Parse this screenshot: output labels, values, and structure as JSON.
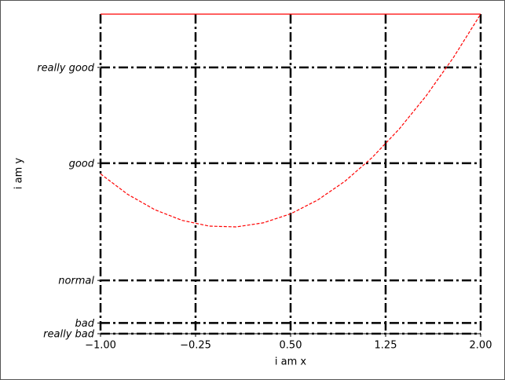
{
  "chart_data": {
    "type": "line",
    "x_label": "i am x",
    "y_label": "i am y",
    "x": [
      -1,
      -0.786,
      -0.571,
      -0.357,
      -0.143,
      0.071,
      0.286,
      0.5,
      0.714,
      0.929,
      1.143,
      1.357,
      1.571,
      1.786,
      2
    ],
    "series": [
      {
        "color": "#ff0000",
        "values": [
          1,
          0.617,
          0.327,
          0.128,
          0.02,
          0.005,
          0.082,
          0.25,
          0.51,
          0.862,
          1.306,
          1.842,
          2.469,
          3.189,
          4
        ]
      }
    ],
    "xlim": [
      -1,
      2
    ],
    "xticks": [
      {
        "value": -1,
        "label": "−1.00"
      },
      {
        "value": -0.25,
        "label": "−0.25"
      },
      {
        "value": 0.5,
        "label": "0.50"
      },
      {
        "value": 1.25,
        "label": "1.25"
      },
      {
        "value": 2,
        "label": "2.00"
      }
    ],
    "ylim": [
      -2,
      4
    ],
    "yticks": [
      {
        "value": -2,
        "label": "really bad"
      },
      {
        "value": -1.8,
        "label": "bad"
      },
      {
        "value": -1,
        "label": "normal"
      },
      {
        "value": 1.2,
        "label": "good"
      },
      {
        "value": 3,
        "label": "really good"
      }
    ],
    "grid": true
  }
}
